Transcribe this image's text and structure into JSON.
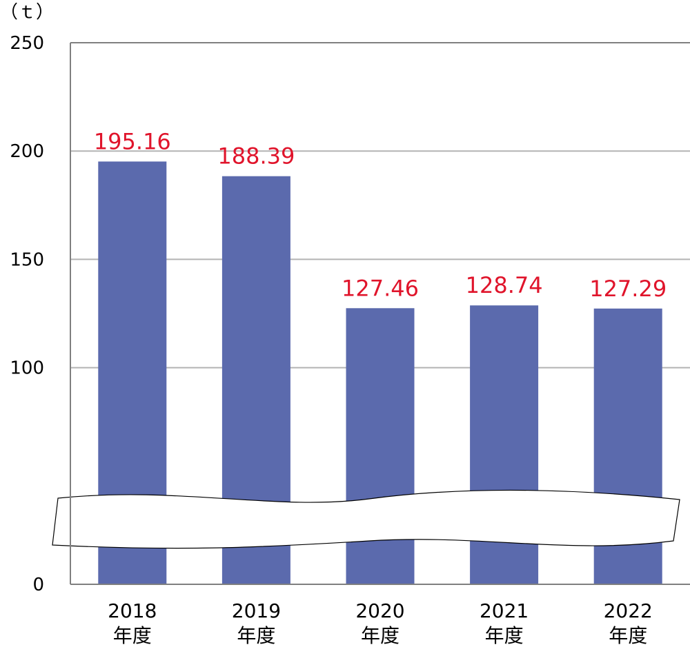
{
  "chart_data": {
    "type": "bar",
    "unit_label": "（ｔ）",
    "categories": [
      "2018\n年度",
      "2019\n年度",
      "2020\n年度",
      "2021\n年度",
      "2022\n年度"
    ],
    "values": [
      195.16,
      188.39,
      127.46,
      128.74,
      127.29
    ],
    "data_labels": [
      "195.16",
      "188.39",
      "127.46",
      "128.74",
      "127.29"
    ],
    "y_ticks": [
      "0",
      "100",
      "150",
      "200",
      "250"
    ],
    "ylim": [
      0,
      250
    ],
    "axis_break": true,
    "grid": true,
    "colors": {
      "bar": "#5b6aad",
      "data_label": "#e0142b",
      "grid": "#b3b3b3",
      "axis": "#7f7f7f"
    }
  }
}
